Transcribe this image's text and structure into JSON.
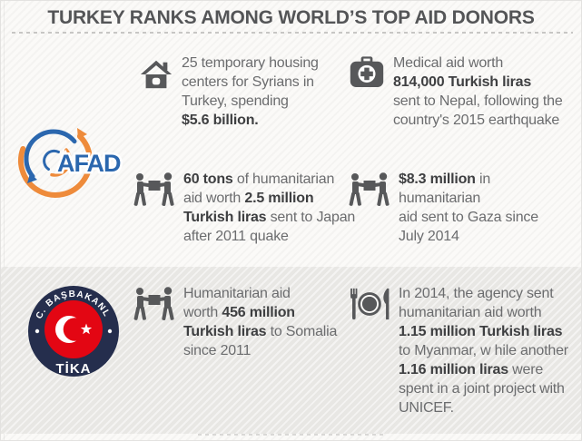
{
  "header": {
    "title": "TURKEY RANKS AMONG WORLD’S TOP AID DONORS"
  },
  "logos": {
    "afad": {
      "label": "AFAD"
    },
    "tika": {
      "top_text": "T.C. BAŞBAKANLIK",
      "bottom_text": "TİKA"
    }
  },
  "colors": {
    "afad_orange": "#ee8b3b",
    "afad_blue": "#2b67ae",
    "tika_navy": "#252e4d",
    "tika_red": "#e30613",
    "icon_gray": "#57585a",
    "text_regular": "#6b6c6e",
    "text_bold": "#3e3f41",
    "band_gray": "#e8e7e4"
  },
  "blocks": [
    {
      "name": "syria-housing",
      "icon": "house-icon",
      "segments": [
        {
          "t": "25 temporary housing\ncenters for Syrians in\nTurkey, spending\n",
          "b": false
        },
        {
          "t": "$5.6 billion.",
          "b": true
        }
      ]
    },
    {
      "name": "nepal-medical",
      "icon": "medical-bag-icon",
      "segments": [
        {
          "t": "Medical aid worth\n",
          "b": false
        },
        {
          "t": "814,000 Turkish liras",
          "b": true
        },
        {
          "t": "\nsent to Nepal, following the\ncountry's 2015 earthquake",
          "b": false
        }
      ]
    },
    {
      "name": "japan-quake-aid",
      "icon": "aid-carriers-icon",
      "segments": [
        {
          "t": "60 tons",
          "b": true
        },
        {
          "t": " of humanitarian\naid worth ",
          "b": false
        },
        {
          "t": "2.5 million\nTurkish liras",
          "b": true
        },
        {
          "t": " sent to Japan\nafter 2011 quake",
          "b": false
        }
      ]
    },
    {
      "name": "gaza-aid",
      "icon": "aid-carriers-icon",
      "segments": [
        {
          "t": "$8.3 million",
          "b": true
        },
        {
          "t": " in\nhumanitarian\naid sent to Gaza since\nJuly 2014",
          "b": false
        }
      ]
    },
    {
      "name": "somalia-aid",
      "icon": "aid-carriers-icon",
      "segments": [
        {
          "t": "Humanitarian aid\nworth ",
          "b": false
        },
        {
          "t": "456 million\nTurkish liras",
          "b": true
        },
        {
          "t": " to Somalia\nsince 2011",
          "b": false
        }
      ]
    },
    {
      "name": "myanmar-aid",
      "icon": "food-plate-icon",
      "segments": [
        {
          "t": "In 2014, the agency sent\nhumanitarian aid worth\n",
          "b": false
        },
        {
          "t": "1.15 million Turkish liras",
          "b": true
        },
        {
          "t": "\nto Myanmar, w hile another\n",
          "b": false
        },
        {
          "t": "1.16 million liras",
          "b": true
        },
        {
          "t": " were\nspent in a joint project with\nUNICEF.",
          "b": false
        }
      ]
    }
  ]
}
